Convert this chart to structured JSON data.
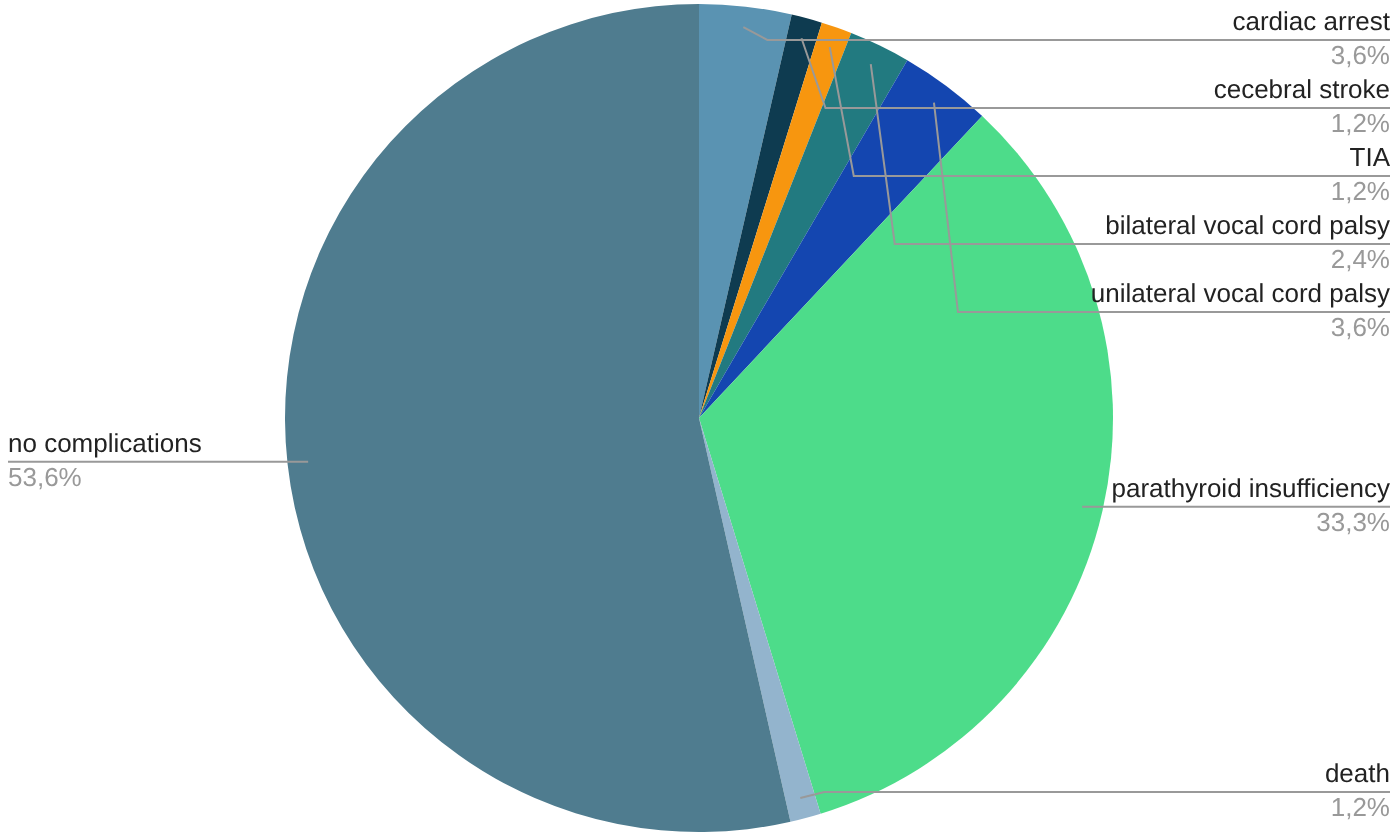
{
  "chart_data": {
    "type": "pie",
    "categories": [
      "cardiac arrest",
      "cecebral stroke",
      "TIA",
      "bilateral vocal cord palsy",
      "unilateral vocal cord palsy",
      "parathyroid insufficiency",
      "death",
      "no complications"
    ],
    "values": [
      3.6,
      1.2,
      1.2,
      2.4,
      3.6,
      33.3,
      1.2,
      53.6
    ],
    "value_labels": [
      "3,6%",
      "1,2%",
      "1,2%",
      "2,4%",
      "3,6%",
      "33,3%",
      "1,2%",
      "53,6%"
    ],
    "colors": [
      "#5a93b2",
      "#0e3b50",
      "#f7960f",
      "#227a80",
      "#1446b0",
      "#4ddc8a",
      "#93b4cd",
      "#4f7c8f"
    ],
    "legend": false
  }
}
